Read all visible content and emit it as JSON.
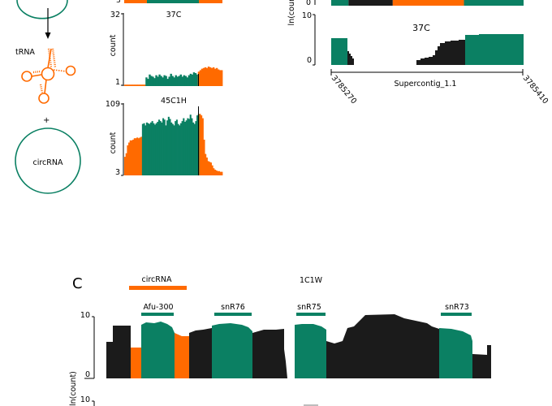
{
  "colors": {
    "teal": "#0b8063",
    "orange": "#ff6a00",
    "black": "#1b1b1b",
    "axis": "#000000"
  },
  "schematic": {
    "trna_label": "tRNA",
    "plus_label": "+",
    "circrna_label": "circRNA"
  },
  "panel_b_charts": [
    {
      "sample": "37C",
      "ylabel": "count",
      "ymax_label": "32",
      "ymin_label": "1",
      "segments": [
        {
          "color": "orange",
          "heights": [
            0.02,
            0.02,
            0.02,
            0.02,
            0.02,
            0.02,
            0.02,
            0.02,
            0.02,
            0.02,
            0.02,
            0.02,
            0.02
          ]
        },
        {
          "color": "teal",
          "heights": [
            0.12,
            0.1,
            0.16,
            0.14,
            0.13,
            0.11,
            0.15,
            0.13,
            0.16,
            0.14,
            0.12,
            0.15,
            0.14,
            0.1,
            0.13,
            0.17,
            0.14,
            0.12,
            0.15,
            0.13,
            0.14,
            0.16,
            0.13,
            0.15,
            0.14,
            0.12,
            0.15,
            0.17,
            0.16,
            0.19,
            0.18,
            0.16
          ]
        },
        {
          "color": "orange",
          "heights": [
            0.2,
            0.22,
            0.24,
            0.25,
            0.26,
            0.25,
            0.27,
            0.26,
            0.25,
            0.26,
            0.24,
            0.25,
            0.23,
            0.22,
            0.22
          ]
        }
      ]
    },
    {
      "sample": "45C1H",
      "ylabel": "count",
      "ymax_label": "109",
      "ymin_label": "3",
      "segments": [
        {
          "color": "orange",
          "heights": [
            0.26,
            0.31,
            0.42,
            0.46,
            0.49,
            0.49,
            0.5,
            0.52,
            0.52,
            0.53,
            0.52,
            0.53,
            0.54
          ]
        },
        {
          "color": "teal",
          "heights": [
            0.72,
            0.73,
            0.7,
            0.74,
            0.73,
            0.72,
            0.74,
            0.76,
            0.73,
            0.71,
            0.73,
            0.75,
            0.78,
            0.76,
            0.74,
            0.8,
            0.78,
            0.7,
            0.77,
            0.82,
            0.79,
            0.74,
            0.72,
            0.7,
            0.76,
            0.78,
            0.72,
            0.7,
            0.73,
            0.76,
            0.8,
            0.75,
            0.77,
            0.8,
            0.79,
            0.85,
            0.8,
            0.74,
            0.72,
            0.76,
            0.84,
            0.86
          ]
        },
        {
          "color": "orange",
          "heights": [
            0.86,
            0.84,
            0.8,
            0.5,
            0.3,
            0.25,
            0.2,
            0.19,
            0.18,
            0.14,
            0.1,
            0.08,
            0.07,
            0.06,
            0.06,
            0.05,
            0.05
          ]
        }
      ]
    }
  ],
  "panel_b_right": {
    "top_y_label": "0",
    "ylabel": "ln(count)",
    "sample": "37C",
    "ymax_label": "10",
    "ymin_label": "0",
    "start_label": "3785270",
    "end_label": "3785410",
    "contig_label": "Supercontig_1.1",
    "top_strip": [
      {
        "color": "teal",
        "from": 0.0,
        "to": 0.09
      },
      {
        "color": "black",
        "from": 0.09,
        "to": 0.32
      },
      {
        "color": "orange",
        "from": 0.32,
        "to": 0.69
      },
      {
        "color": "teal",
        "from": 0.69,
        "to": 1.0
      }
    ]
  },
  "panel_c": {
    "panel_letter": "C",
    "circrna_label": "circRNA",
    "sample": "1C1W",
    "ymax_label": "10",
    "ymin_label": "0",
    "bottom_ylabel_partial": "ln(count)",
    "bottom_ymax_label": "10",
    "genes": [
      {
        "name": "Afu-300"
      },
      {
        "name": "snR76"
      },
      {
        "name": "snR75"
      },
      {
        "name": "snR73"
      }
    ]
  }
}
